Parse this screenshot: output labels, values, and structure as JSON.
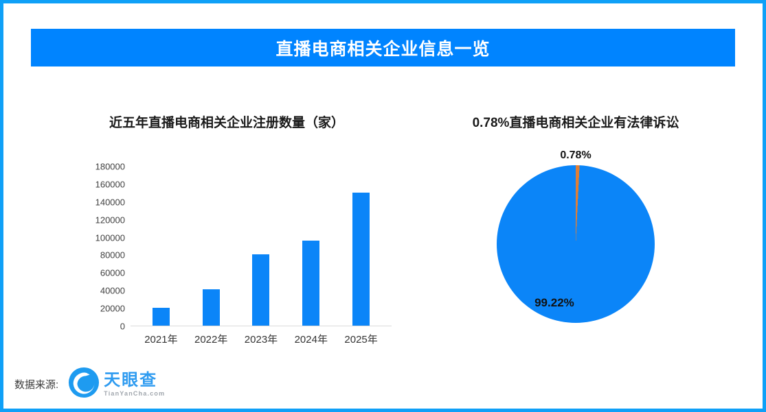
{
  "header": {
    "title": "直播电商相关企业信息一览",
    "banner_color": "#0084ff",
    "border_color": "#0fa0f7"
  },
  "chart_data": [
    {
      "type": "bar",
      "title": "近五年直播电商相关企业注册数量（家）",
      "categories": [
        "2021年",
        "2022年",
        "2023年",
        "2024年",
        "2025年"
      ],
      "values": [
        20000,
        41000,
        80000,
        96000,
        150000
      ],
      "xlabel": "",
      "ylabel": "",
      "ylim": [
        0,
        180000
      ],
      "yticks": [
        0,
        20000,
        40000,
        60000,
        80000,
        100000,
        120000,
        140000,
        160000,
        180000
      ],
      "grid": false,
      "legend": "none",
      "bar_color": "#0b85f8",
      "axis_line_color": "#d9d9d9"
    },
    {
      "type": "pie",
      "title": "0.78%直播电商相关企业有法律诉讼",
      "slices": [
        {
          "label": "0.78%",
          "value": 0.78,
          "color": "#e07e35"
        },
        {
          "label": "99.22%",
          "value": 99.22,
          "color": "#0b85f8"
        }
      ],
      "legend": "none",
      "start_angle_deg": 0
    }
  ],
  "footer": {
    "source_label": "数据来源:",
    "logo": {
      "name": "天眼查",
      "domain": "TianYanCha.com",
      "icon": "tianyancha-eye-icon",
      "brand_color": "#2e9bf0"
    }
  }
}
